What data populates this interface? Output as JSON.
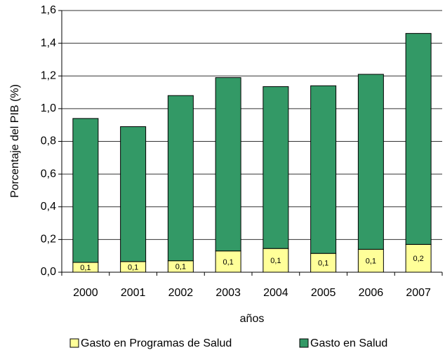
{
  "chart_data": {
    "type": "stacked_bar",
    "y_label": "Porcentaje del PIB (%)",
    "x_label": "años",
    "categories": [
      "2000",
      "2001",
      "2002",
      "2003",
      "2004",
      "2005",
      "2006",
      "2007"
    ],
    "series": [
      {
        "name": "Gasto en Programas de Salud",
        "color": "#ffff99",
        "values": [
          0.06,
          0.065,
          0.07,
          0.13,
          0.145,
          0.115,
          0.14,
          0.17
        ],
        "value_labels": [
          "0,1",
          "0,1",
          "0,1",
          "0,1",
          "0,1",
          "0,1",
          "0,1",
          "0,2"
        ]
      },
      {
        "name": "Gasto en Salud",
        "color": "#339966",
        "values": [
          0.88,
          0.825,
          1.01,
          1.06,
          0.99,
          1.025,
          1.07,
          1.29
        ]
      }
    ],
    "ylim": [
      0,
      1.6
    ],
    "yticks": [
      {
        "value": 0,
        "label": "0,0"
      },
      {
        "value": 0.2,
        "label": "0,2"
      },
      {
        "value": 0.4,
        "label": "0,4"
      },
      {
        "value": 0.6,
        "label": "0,6"
      },
      {
        "value": 0.8,
        "label": "0,8"
      },
      {
        "value": 1.0,
        "label": "1,0"
      },
      {
        "value": 1.2,
        "label": "1,2"
      },
      {
        "value": 1.4,
        "label": "1,4"
      },
      {
        "value": 1.6,
        "label": "1,6"
      }
    ],
    "grid": true,
    "legend": "bottom"
  }
}
